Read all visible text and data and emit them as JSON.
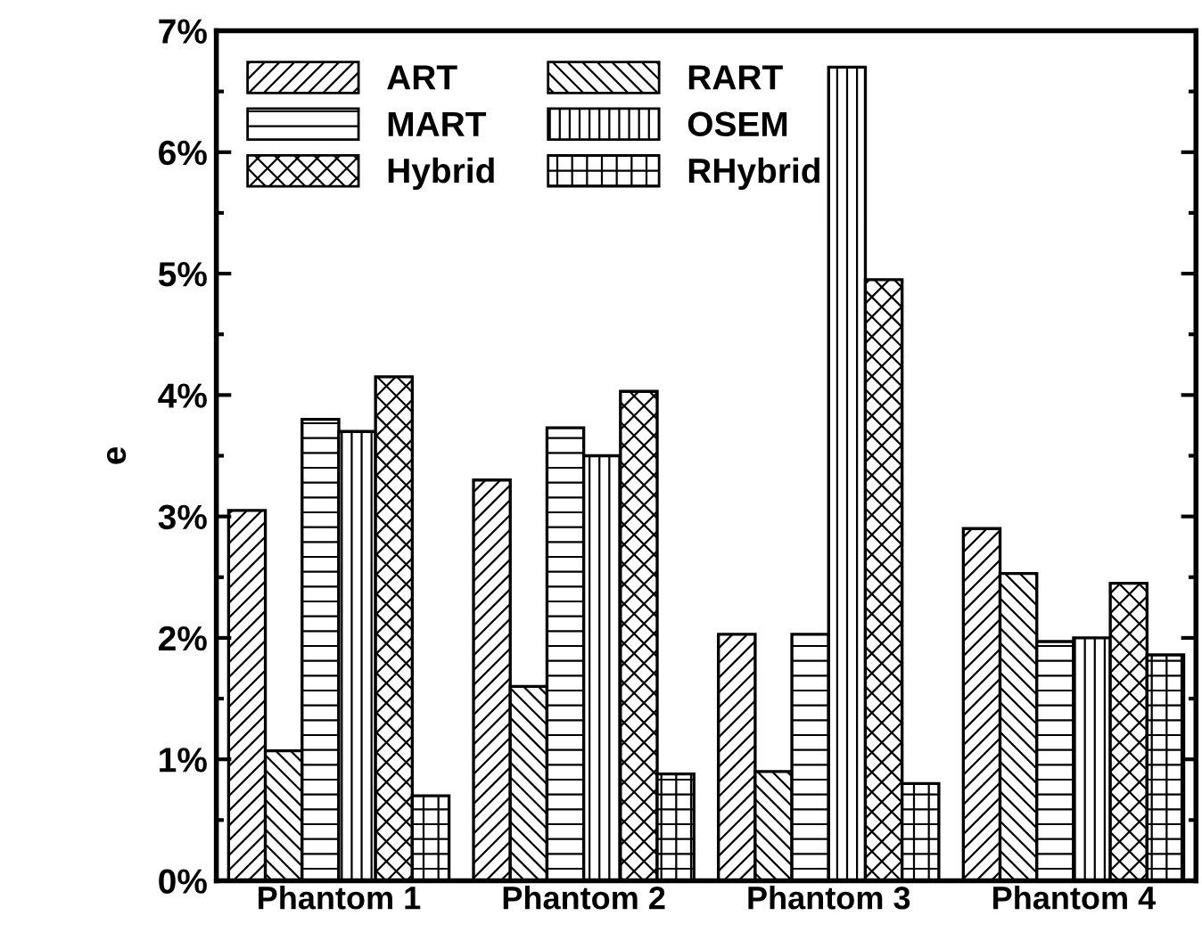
{
  "chart_data": {
    "type": "bar",
    "ylabel": "e",
    "categories": [
      "Phantom 1",
      "Phantom 2",
      "Phantom 3",
      "Phantom 4"
    ],
    "series": [
      {
        "name": "ART",
        "color": "#000000",
        "values": [
          3.05,
          3.3,
          2.03,
          2.9
        ]
      },
      {
        "name": "RART",
        "color": "#000000",
        "values": [
          1.07,
          1.6,
          0.9,
          2.53
        ]
      },
      {
        "name": "MART",
        "color": "#000000",
        "values": [
          3.8,
          3.73,
          2.03,
          1.97
        ]
      },
      {
        "name": "OSEM",
        "color": "#000000",
        "values": [
          3.7,
          3.5,
          6.7,
          2.0
        ]
      },
      {
        "name": "Hybrid",
        "color": "#000000",
        "values": [
          4.15,
          4.03,
          4.95,
          2.45
        ]
      },
      {
        "name": "RHybrid",
        "color": "#000000",
        "values": [
          0.7,
          0.88,
          0.8,
          1.86
        ]
      }
    ],
    "ylim": [
      0,
      7
    ],
    "yticks": [
      {
        "value": 0,
        "label": "0%"
      },
      {
        "value": 1,
        "label": "1%"
      },
      {
        "value": 2,
        "label": "2%"
      },
      {
        "value": 3,
        "label": "3%"
      },
      {
        "value": 4,
        "label": "4%"
      },
      {
        "value": 5,
        "label": "5%"
      },
      {
        "value": 6,
        "label": "6%"
      },
      {
        "value": 7,
        "label": "7%"
      }
    ],
    "grid": false,
    "legend": "top left"
  }
}
